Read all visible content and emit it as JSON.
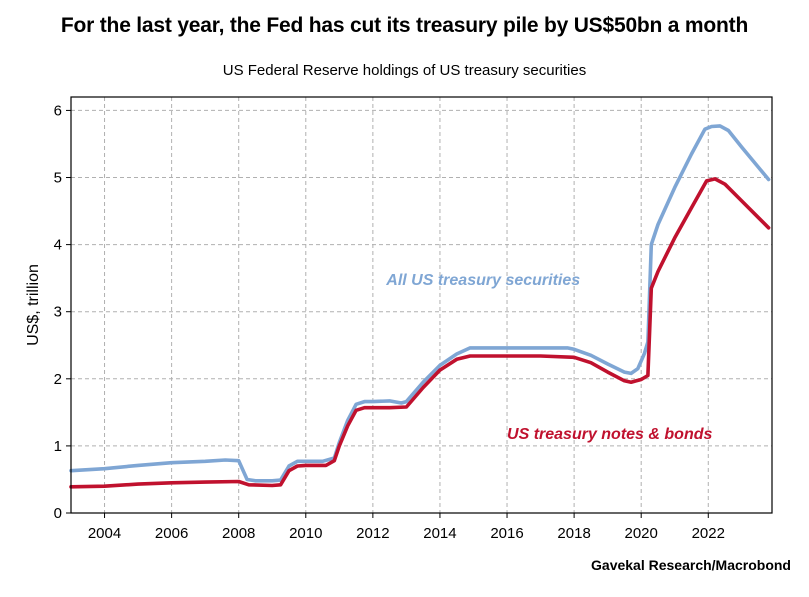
{
  "title": "For the last year, the Fed has cut its treasury pile by US$50bn a month",
  "subtitle": "US Federal Reserve holdings of US treasury securities",
  "source": "Gavekal Research/Macrobond",
  "colors": {
    "all": "#7fa6d4",
    "notes": "#c0112e",
    "grid": "#b0b0b0"
  },
  "chart_data": {
    "type": "line",
    "title": "US Federal Reserve holdings of US treasury securities",
    "xlabel": "",
    "ylabel": "US$, trillion",
    "xlim": [
      2003.0,
      2023.9
    ],
    "ylim": [
      0,
      6.2
    ],
    "xticks": [
      2004,
      2006,
      2008,
      2010,
      2012,
      2014,
      2016,
      2018,
      2020,
      2022
    ],
    "yticks": [
      0,
      1,
      2,
      3,
      4,
      5,
      6
    ],
    "grid": true,
    "series": [
      {
        "name": "All US treasury securities",
        "label": "All US treasury securities",
        "color": "#7fa6d4",
        "x": [
          2003.0,
          2004.0,
          2005.0,
          2006.0,
          2007.0,
          2007.6,
          2008.0,
          2008.25,
          2008.5,
          2009.0,
          2009.25,
          2009.5,
          2009.75,
          2010.0,
          2010.5,
          2010.85,
          2011.0,
          2011.25,
          2011.5,
          2011.75,
          2012.0,
          2012.5,
          2012.85,
          2013.0,
          2013.5,
          2014.0,
          2014.5,
          2014.9,
          2015.5,
          2016.0,
          2017.0,
          2017.8,
          2018.0,
          2018.5,
          2019.0,
          2019.5,
          2019.7,
          2019.9,
          2020.1,
          2020.2,
          2020.3,
          2020.5,
          2021.0,
          2021.5,
          2021.9,
          2022.1,
          2022.35,
          2022.6,
          2023.0,
          2023.5,
          2023.8
        ],
        "values": [
          0.63,
          0.66,
          0.71,
          0.75,
          0.77,
          0.79,
          0.78,
          0.5,
          0.48,
          0.48,
          0.49,
          0.7,
          0.77,
          0.77,
          0.77,
          0.82,
          1.05,
          1.38,
          1.62,
          1.66,
          1.66,
          1.67,
          1.64,
          1.66,
          1.95,
          2.2,
          2.37,
          2.46,
          2.46,
          2.46,
          2.46,
          2.46,
          2.44,
          2.35,
          2.22,
          2.1,
          2.08,
          2.15,
          2.38,
          2.55,
          4.0,
          4.3,
          4.85,
          5.35,
          5.72,
          5.76,
          5.77,
          5.7,
          5.45,
          5.15,
          4.97
        ]
      },
      {
        "name": "US treasury notes & bonds",
        "label": "US treasury notes & bonds",
        "color": "#c0112e",
        "x": [
          2003.0,
          2004.0,
          2005.0,
          2006.0,
          2007.0,
          2008.0,
          2008.3,
          2009.0,
          2009.25,
          2009.5,
          2009.75,
          2010.0,
          2010.6,
          2010.85,
          2011.0,
          2011.25,
          2011.5,
          2011.75,
          2012.0,
          2012.5,
          2013.0,
          2013.5,
          2014.0,
          2014.5,
          2014.9,
          2015.5,
          2016.0,
          2017.0,
          2018.0,
          2018.5,
          2019.0,
          2019.5,
          2019.7,
          2020.0,
          2020.2,
          2020.3,
          2020.5,
          2021.0,
          2021.5,
          2021.95,
          2022.2,
          2022.5,
          2023.0,
          2023.5,
          2023.8
        ],
        "values": [
          0.39,
          0.4,
          0.43,
          0.45,
          0.46,
          0.47,
          0.42,
          0.41,
          0.42,
          0.63,
          0.7,
          0.71,
          0.71,
          0.78,
          1.0,
          1.3,
          1.53,
          1.57,
          1.57,
          1.57,
          1.58,
          1.87,
          2.13,
          2.29,
          2.34,
          2.34,
          2.34,
          2.34,
          2.32,
          2.24,
          2.1,
          1.97,
          1.95,
          1.99,
          2.05,
          3.35,
          3.6,
          4.1,
          4.55,
          4.95,
          4.98,
          4.9,
          4.65,
          4.4,
          4.25
        ]
      }
    ]
  }
}
